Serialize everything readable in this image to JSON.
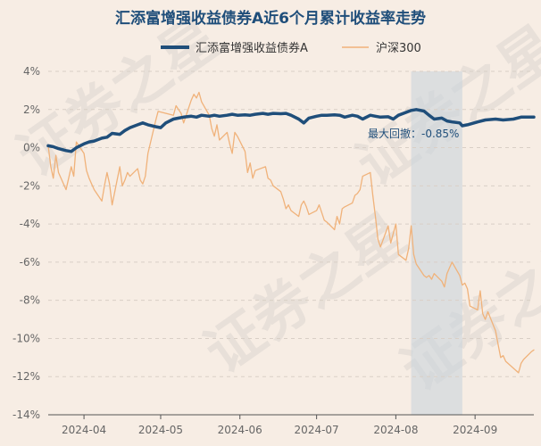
{
  "chart_data": {
    "type": "line",
    "title": "汇添富增强收益债券A近6个月累计收益率走势",
    "xlabel": "",
    "ylabel": "",
    "ylim": [
      -14,
      4
    ],
    "yticks": [
      4,
      2,
      0,
      -2,
      -4,
      -6,
      -8,
      -10,
      -12,
      -14
    ],
    "ytick_labels": [
      "4%",
      "2%",
      "0%",
      "-2%",
      "-4%",
      "-6%",
      "-8%",
      "-10%",
      "-12%",
      "-14%"
    ],
    "xrange": [
      "2024-03-18",
      "2024-09-24"
    ],
    "xticks": [
      "2024-04-01",
      "2024-05-01",
      "2024-06-01",
      "2024-07-01",
      "2024-08-01",
      "2024-09-01"
    ],
    "xtick_labels": [
      "2024-04",
      "2024-05",
      "2024-06",
      "2024-07",
      "2024-08",
      "2024-09"
    ],
    "grid": "horizontal dashed",
    "legend_position": "top-center",
    "watermark": "证券之星",
    "annotation": {
      "label": "最大回撤：-0.85%",
      "shade_start": "2024-08-07",
      "shade_end": "2024-08-27"
    },
    "series": [
      {
        "name": "汇添富增强收益债券A",
        "color": "#1f4e7a",
        "points": [
          [
            "2024-03-18",
            0.1
          ],
          [
            "2024-03-20",
            0.05
          ],
          [
            "2024-03-22",
            -0.05
          ],
          [
            "2024-03-25",
            -0.15
          ],
          [
            "2024-03-27",
            -0.2
          ],
          [
            "2024-03-29",
            0.0
          ],
          [
            "2024-04-01",
            0.2
          ],
          [
            "2024-04-03",
            0.3
          ],
          [
            "2024-04-05",
            0.35
          ],
          [
            "2024-04-08",
            0.5
          ],
          [
            "2024-04-10",
            0.55
          ],
          [
            "2024-04-12",
            0.75
          ],
          [
            "2024-04-15",
            0.7
          ],
          [
            "2024-04-17",
            0.9
          ],
          [
            "2024-04-19",
            1.05
          ],
          [
            "2024-04-22",
            1.2
          ],
          [
            "2024-04-24",
            1.3
          ],
          [
            "2024-04-26",
            1.2
          ],
          [
            "2024-04-29",
            1.1
          ],
          [
            "2024-05-01",
            1.05
          ],
          [
            "2024-05-03",
            1.3
          ],
          [
            "2024-05-06",
            1.5
          ],
          [
            "2024-05-08",
            1.55
          ],
          [
            "2024-05-10",
            1.6
          ],
          [
            "2024-05-13",
            1.65
          ],
          [
            "2024-05-15",
            1.6
          ],
          [
            "2024-05-17",
            1.7
          ],
          [
            "2024-05-20",
            1.65
          ],
          [
            "2024-05-22",
            1.7
          ],
          [
            "2024-05-24",
            1.65
          ],
          [
            "2024-05-27",
            1.7
          ],
          [
            "2024-05-29",
            1.75
          ],
          [
            "2024-05-31",
            1.7
          ],
          [
            "2024-06-03",
            1.72
          ],
          [
            "2024-06-05",
            1.7
          ],
          [
            "2024-06-07",
            1.75
          ],
          [
            "2024-06-10",
            1.8
          ],
          [
            "2024-06-12",
            1.75
          ],
          [
            "2024-06-14",
            1.8
          ],
          [
            "2024-06-17",
            1.78
          ],
          [
            "2024-06-19",
            1.8
          ],
          [
            "2024-06-21",
            1.7
          ],
          [
            "2024-06-24",
            1.5
          ],
          [
            "2024-06-26",
            1.3
          ],
          [
            "2024-06-28",
            1.55
          ],
          [
            "2024-07-01",
            1.65
          ],
          [
            "2024-07-03",
            1.7
          ],
          [
            "2024-07-05",
            1.7
          ],
          [
            "2024-07-08",
            1.72
          ],
          [
            "2024-07-10",
            1.7
          ],
          [
            "2024-07-12",
            1.6
          ],
          [
            "2024-07-15",
            1.7
          ],
          [
            "2024-07-17",
            1.65
          ],
          [
            "2024-07-19",
            1.5
          ],
          [
            "2024-07-22",
            1.7
          ],
          [
            "2024-07-24",
            1.65
          ],
          [
            "2024-07-26",
            1.6
          ],
          [
            "2024-07-29",
            1.62
          ],
          [
            "2024-07-31",
            1.5
          ],
          [
            "2024-08-02",
            1.7
          ],
          [
            "2024-08-05",
            1.85
          ],
          [
            "2024-08-07",
            1.95
          ],
          [
            "2024-08-09",
            2.0
          ],
          [
            "2024-08-12",
            1.92
          ],
          [
            "2024-08-14",
            1.7
          ],
          [
            "2024-08-16",
            1.5
          ],
          [
            "2024-08-19",
            1.55
          ],
          [
            "2024-08-21",
            1.4
          ],
          [
            "2024-08-23",
            1.35
          ],
          [
            "2024-08-26",
            1.3
          ],
          [
            "2024-08-27",
            1.15
          ],
          [
            "2024-08-29",
            1.2
          ],
          [
            "2024-09-02",
            1.35
          ],
          [
            "2024-09-05",
            1.45
          ],
          [
            "2024-09-09",
            1.5
          ],
          [
            "2024-09-12",
            1.45
          ],
          [
            "2024-09-16",
            1.5
          ],
          [
            "2024-09-19",
            1.6
          ],
          [
            "2024-09-24",
            1.6
          ]
        ]
      },
      {
        "name": "沪深300",
        "color": "#f0b27a",
        "points": [
          [
            "2024-03-18",
            0.1
          ],
          [
            "2024-03-19",
            -1.0
          ],
          [
            "2024-03-20",
            -1.6
          ],
          [
            "2024-03-21",
            -0.4
          ],
          [
            "2024-03-22",
            -1.3
          ],
          [
            "2024-03-25",
            -2.2
          ],
          [
            "2024-03-26",
            -1.6
          ],
          [
            "2024-03-27",
            -1.0
          ],
          [
            "2024-03-28",
            -1.5
          ],
          [
            "2024-03-29",
            0.3
          ],
          [
            "2024-04-01",
            -0.3
          ],
          [
            "2024-04-02",
            -1.2
          ],
          [
            "2024-04-03",
            -1.6
          ],
          [
            "2024-04-05",
            -2.2
          ],
          [
            "2024-04-08",
            -2.8
          ],
          [
            "2024-04-09",
            -2.0
          ],
          [
            "2024-04-10",
            -1.3
          ],
          [
            "2024-04-11",
            -1.9
          ],
          [
            "2024-04-12",
            -3.0
          ],
          [
            "2024-04-15",
            -1.0
          ],
          [
            "2024-04-16",
            -2.0
          ],
          [
            "2024-04-17",
            -1.7
          ],
          [
            "2024-04-18",
            -1.3
          ],
          [
            "2024-04-19",
            -1.5
          ],
          [
            "2024-04-22",
            -1.1
          ],
          [
            "2024-04-23",
            -1.7
          ],
          [
            "2024-04-24",
            -1.9
          ],
          [
            "2024-04-25",
            -1.5
          ],
          [
            "2024-04-26",
            -0.3
          ],
          [
            "2024-04-29",
            1.4
          ],
          [
            "2024-04-30",
            1.9
          ],
          [
            "2024-05-06",
            1.7
          ],
          [
            "2024-05-07",
            2.2
          ],
          [
            "2024-05-08",
            2.0
          ],
          [
            "2024-05-09",
            1.8
          ],
          [
            "2024-05-10",
            1.3
          ],
          [
            "2024-05-13",
            2.5
          ],
          [
            "2024-05-14",
            2.8
          ],
          [
            "2024-05-15",
            2.6
          ],
          [
            "2024-05-16",
            2.9
          ],
          [
            "2024-05-17",
            2.4
          ],
          [
            "2024-05-20",
            1.7
          ],
          [
            "2024-05-21",
            1.0
          ],
          [
            "2024-05-22",
            0.6
          ],
          [
            "2024-05-23",
            1.2
          ],
          [
            "2024-05-24",
            0.4
          ],
          [
            "2024-05-27",
            0.8
          ],
          [
            "2024-05-28",
            0.2
          ],
          [
            "2024-05-29",
            -0.3
          ],
          [
            "2024-05-30",
            0.8
          ],
          [
            "2024-05-31",
            0.6
          ],
          [
            "2024-06-03",
            -0.2
          ],
          [
            "2024-06-04",
            -1.3
          ],
          [
            "2024-06-05",
            -0.8
          ],
          [
            "2024-06-06",
            -1.6
          ],
          [
            "2024-06-07",
            -1.2
          ],
          [
            "2024-06-11",
            -1.0
          ],
          [
            "2024-06-12",
            -1.6
          ],
          [
            "2024-06-13",
            -1.7
          ],
          [
            "2024-06-14",
            -2.0
          ],
          [
            "2024-06-17",
            -2.3
          ],
          [
            "2024-06-18",
            -2.7
          ],
          [
            "2024-06-19",
            -3.2
          ],
          [
            "2024-06-20",
            -3.0
          ],
          [
            "2024-06-21",
            -3.3
          ],
          [
            "2024-06-24",
            -3.6
          ],
          [
            "2024-06-25",
            -3.0
          ],
          [
            "2024-06-26",
            -2.8
          ],
          [
            "2024-06-27",
            -3.1
          ],
          [
            "2024-06-28",
            -3.5
          ],
          [
            "2024-07-01",
            -3.3
          ],
          [
            "2024-07-02",
            -3.0
          ],
          [
            "2024-07-03",
            -3.4
          ],
          [
            "2024-07-04",
            -3.8
          ],
          [
            "2024-07-05",
            -3.9
          ],
          [
            "2024-07-08",
            -4.3
          ],
          [
            "2024-07-09",
            -3.6
          ],
          [
            "2024-07-10",
            -4.0
          ],
          [
            "2024-07-11",
            -3.2
          ],
          [
            "2024-07-12",
            -3.1
          ],
          [
            "2024-07-15",
            -2.9
          ],
          [
            "2024-07-16",
            -2.5
          ],
          [
            "2024-07-17",
            -2.4
          ],
          [
            "2024-07-18",
            -2.2
          ],
          [
            "2024-07-19",
            -1.5
          ],
          [
            "2024-07-22",
            -1.3
          ],
          [
            "2024-07-23",
            -2.5
          ],
          [
            "2024-07-24",
            -3.6
          ],
          [
            "2024-07-25",
            -4.8
          ],
          [
            "2024-07-26",
            -5.2
          ],
          [
            "2024-07-29",
            -4.1
          ],
          [
            "2024-07-30",
            -5.0
          ],
          [
            "2024-07-31",
            -4.5
          ],
          [
            "2024-08-01",
            -4.0
          ],
          [
            "2024-08-02",
            -5.6
          ],
          [
            "2024-08-05",
            -5.9
          ],
          [
            "2024-08-06",
            -5.3
          ],
          [
            "2024-08-07",
            -4.1
          ],
          [
            "2024-08-08",
            -5.6
          ],
          [
            "2024-08-09",
            -6.1
          ],
          [
            "2024-08-12",
            -6.7
          ],
          [
            "2024-08-13",
            -6.8
          ],
          [
            "2024-08-14",
            -6.7
          ],
          [
            "2024-08-15",
            -6.9
          ],
          [
            "2024-08-16",
            -6.6
          ],
          [
            "2024-08-19",
            -7.0
          ],
          [
            "2024-08-20",
            -7.3
          ],
          [
            "2024-08-21",
            -6.6
          ],
          [
            "2024-08-22",
            -6.3
          ],
          [
            "2024-08-23",
            -6.0
          ],
          [
            "2024-08-26",
            -6.7
          ],
          [
            "2024-08-27",
            -7.2
          ],
          [
            "2024-08-28",
            -7.1
          ],
          [
            "2024-08-29",
            -7.4
          ],
          [
            "2024-08-30",
            -8.3
          ],
          [
            "2024-09-02",
            -8.5
          ],
          [
            "2024-09-03",
            -7.5
          ],
          [
            "2024-09-04",
            -8.7
          ],
          [
            "2024-09-05",
            -9.0
          ],
          [
            "2024-09-06",
            -8.6
          ],
          [
            "2024-09-09",
            -9.6
          ],
          [
            "2024-09-10",
            -10.3
          ],
          [
            "2024-09-11",
            -11.0
          ],
          [
            "2024-09-12",
            -10.9
          ],
          [
            "2024-09-13",
            -11.2
          ],
          [
            "2024-09-18",
            -11.8
          ],
          [
            "2024-09-19",
            -11.3
          ],
          [
            "2024-09-20",
            -11.1
          ],
          [
            "2024-09-23",
            -10.7
          ],
          [
            "2024-09-24",
            -10.6
          ]
        ]
      }
    ]
  }
}
